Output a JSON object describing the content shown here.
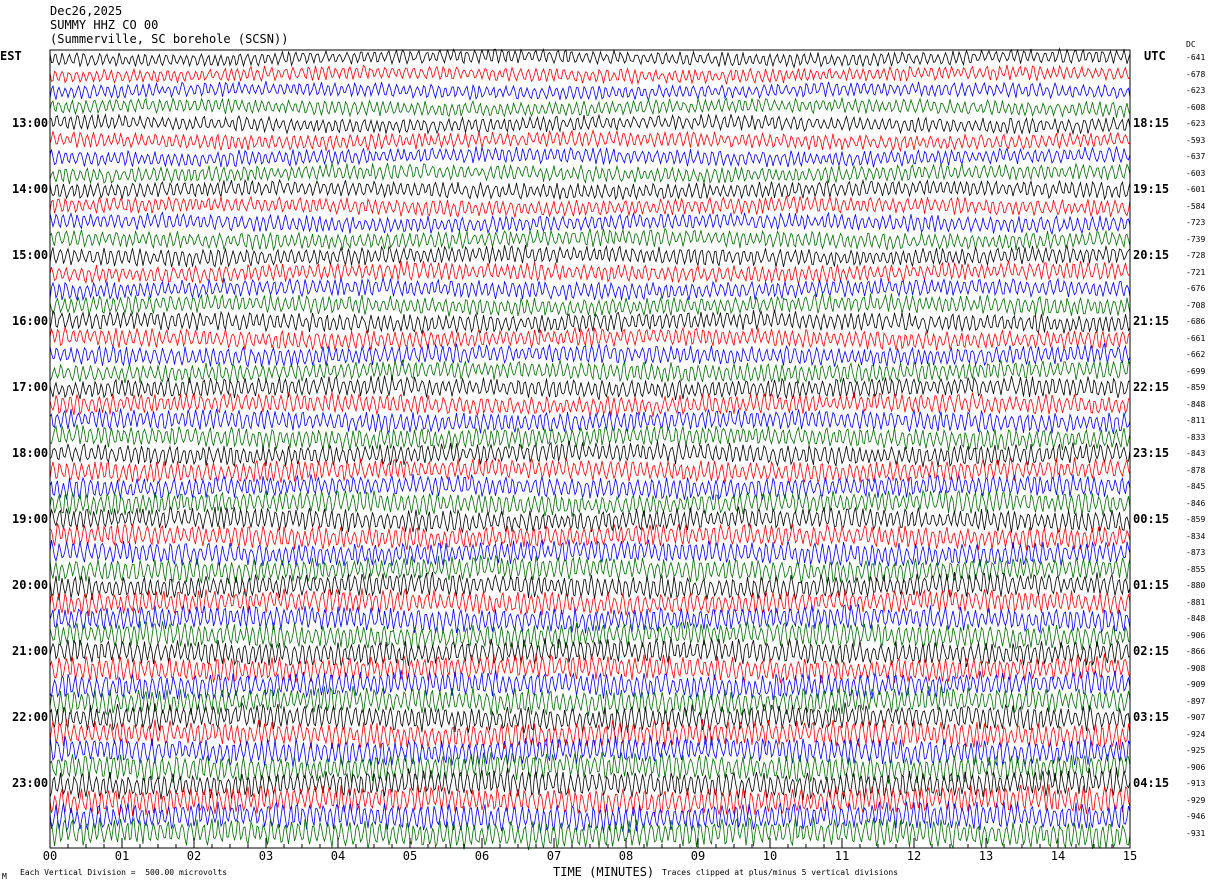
{
  "header": {
    "date": "Dec26,2025",
    "station": "SUMMY HHZ CO 00",
    "location": "(Summerville, SC borehole (SCSN))"
  },
  "chart_data": {
    "type": "line",
    "title": "Dec26,2025 SUMMY HHZ CO 00",
    "xlabel": "TIME (MINUTES)",
    "xlim": [
      0,
      15
    ],
    "x_ticks": [
      "00",
      "01",
      "02",
      "03",
      "04",
      "05",
      "06",
      "07",
      "08",
      "09",
      "10",
      "11",
      "12",
      "13",
      "14",
      "15"
    ],
    "left_axis_label": "EST",
    "left_ticks": [
      "13:00",
      "14:00",
      "15:00",
      "16:00",
      "17:00",
      "18:00",
      "19:00",
      "20:00",
      "21:00",
      "22:00",
      "23:00"
    ],
    "right_axis_label": "UTC",
    "right_ticks": [
      "18:15",
      "19:15",
      "20:15",
      "21:15",
      "22:15",
      "23:15",
      "00:15",
      "01:15",
      "02:15",
      "03:15",
      "04:15"
    ],
    "dc_label": "DC",
    "dc_offsets": [
      -641,
      -678,
      -623,
      -608,
      -623,
      -593,
      -637,
      -603,
      -601,
      -584,
      -723,
      -739,
      -728,
      -721,
      -676,
      -708,
      -686,
      -661,
      -662,
      -699,
      -859,
      -848,
      -811,
      -833,
      -843,
      -878,
      -845,
      -846,
      -859,
      -834,
      -873,
      -855,
      -880,
      -881,
      -848,
      -906,
      -866,
      -908,
      -909,
      -897,
      -907,
      -924,
      -925,
      -906,
      -913,
      -929,
      -946,
      -931
    ],
    "trace_count": 48,
    "trace_colors": [
      "#000000",
      "#ff0000",
      "#0000ff",
      "#007000"
    ],
    "grid": false
  },
  "footer": {
    "scale": "Each Vertical Division =  500.00 microvolts",
    "clip": "Traces clipped at plus/minus 5 vertical divisions",
    "corner": "M"
  }
}
